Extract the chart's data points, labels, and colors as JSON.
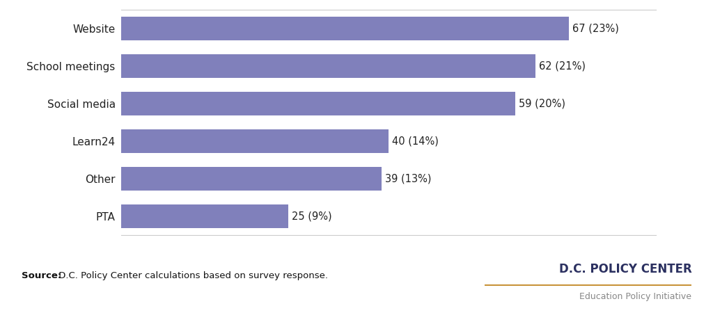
{
  "categories": [
    "PTA",
    "Other",
    "Learn24",
    "Social media",
    "School meetings",
    "Website"
  ],
  "values": [
    25,
    39,
    40,
    59,
    62,
    67
  ],
  "labels": [
    "25 (9%)",
    "39 (13%)",
    "40 (14%)",
    "59 (20%)",
    "62 (21%)",
    "67 (23%)"
  ],
  "bar_color": "#8080bb",
  "background_color": "#ffffff",
  "xlim_max": 80,
  "bar_height": 0.62,
  "label_fontsize": 10.5,
  "tick_fontsize": 11,
  "source_bold": "Source:",
  "source_rest": " D.C. Policy Center calculations based on survey response.",
  "dc_policy_center": "D.C. POLICY CENTER",
  "dc_subtitle": "Education Policy Initiative",
  "dc_color": "#2b3060",
  "dc_subtitle_color": "#888888",
  "gold_color": "#c8933a",
  "spine_color": "#cccccc"
}
